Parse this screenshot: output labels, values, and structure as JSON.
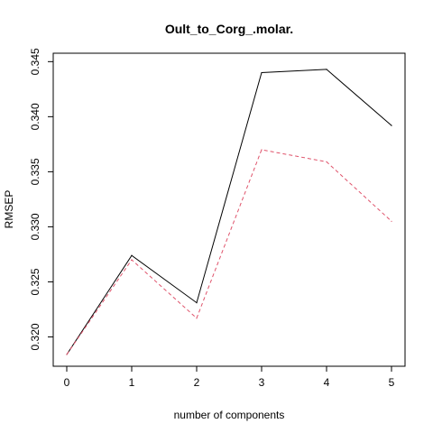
{
  "chart_data": {
    "type": "line",
    "title": "Oult_to_Corg_.molar.",
    "xlabel": "number of components",
    "ylabel": "RMSEP",
    "x": [
      0,
      1,
      2,
      3,
      4,
      5
    ],
    "xlim": [
      0,
      5
    ],
    "ylim": [
      0.3184,
      0.3447
    ],
    "x_ticks": [
      "0",
      "1",
      "2",
      "3",
      "4",
      "5"
    ],
    "y_ticks": [
      "0.320",
      "0.325",
      "0.330",
      "0.335",
      "0.340",
      "0.345"
    ],
    "y_tick_values": [
      0.32,
      0.325,
      0.33,
      0.335,
      0.34,
      0.345
    ],
    "grid": false,
    "series": [
      {
        "line_style": "solid",
        "color": "#000000",
        "values": [
          0.3184,
          0.3274,
          0.3231,
          0.344,
          0.3443,
          0.3392
        ]
      },
      {
        "line_style": "dashed",
        "color": "#DF536B",
        "values": [
          0.3184,
          0.327,
          0.3217,
          0.337,
          0.3359,
          0.3305
        ]
      }
    ]
  }
}
